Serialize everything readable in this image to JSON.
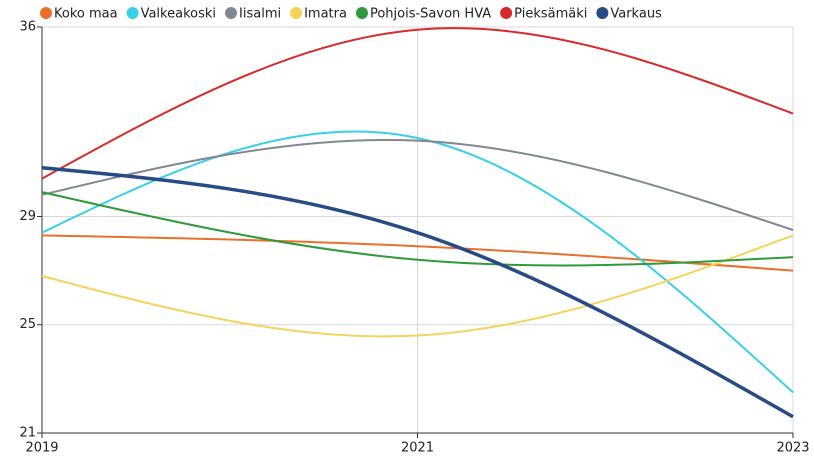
{
  "chart_data": {
    "type": "line",
    "x": [
      2019,
      2021,
      2023
    ],
    "xlim": [
      2019,
      2023
    ],
    "xticks": [
      2019,
      2021,
      2023
    ],
    "ylim": [
      21,
      36
    ],
    "yticks": [
      21,
      25,
      29,
      36
    ],
    "grid": true,
    "legend": "top",
    "series": [
      {
        "name": "Koko maa",
        "color": "#e8702a",
        "values": [
          28.3,
          27.9,
          27.0
        ]
      },
      {
        "name": "Valkeakoski",
        "color": "#38d0e8",
        "values": [
          28.4,
          31.9,
          22.5
        ]
      },
      {
        "name": "Iisalmi",
        "color": "#808890",
        "values": [
          29.8,
          31.8,
          28.5
        ]
      },
      {
        "name": "Imatra",
        "color": "#f5d35a",
        "values": [
          26.8,
          24.6,
          28.3
        ]
      },
      {
        "name": "Pohjois-Savon HVA",
        "color": "#2e9a3a",
        "values": [
          29.9,
          27.4,
          27.5
        ]
      },
      {
        "name": "Pieksämäki",
        "color": "#d62b2b",
        "values": [
          30.4,
          35.9,
          32.8
        ]
      },
      {
        "name": "Varkaus",
        "color": "#274b85",
        "values": [
          30.8,
          28.4,
          21.6
        ]
      }
    ]
  }
}
